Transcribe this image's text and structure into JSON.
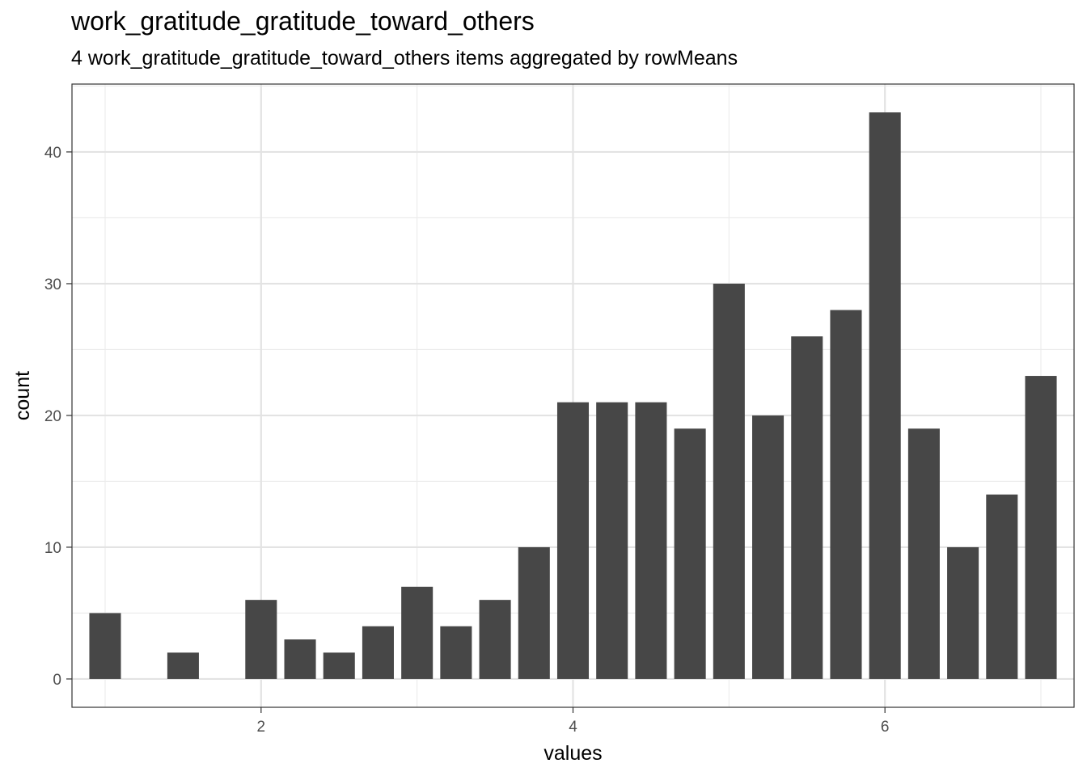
{
  "chart_data": {
    "type": "bar",
    "title": "work_gratitude_gratitude_toward_others",
    "subtitle": "4 work_gratitude_gratitude_toward_others items aggregated by rowMeans",
    "xlabel": "values",
    "ylabel": "count",
    "xlim": [
      0.7875,
      7.2125
    ],
    "ylim": [
      -2.15,
      45.15
    ],
    "x_ticks": [
      2,
      4,
      6
    ],
    "y_ticks": [
      0,
      10,
      20,
      30,
      40
    ],
    "bar_width": 0.225,
    "bar_color": "#474747",
    "grid": true,
    "legend": "none",
    "x": [
      1,
      1.5,
      2,
      2.25,
      2.5,
      2.75,
      3,
      3.25,
      3.5,
      3.75,
      4,
      4.25,
      4.5,
      4.75,
      5,
      5.25,
      5.5,
      5.75,
      6,
      6.25,
      6.5,
      6.75,
      7
    ],
    "values": [
      5,
      2,
      6,
      3,
      2,
      4,
      7,
      4,
      6,
      10,
      21,
      21,
      21,
      19,
      30,
      20,
      26,
      28,
      43,
      19,
      10,
      14,
      23
    ]
  }
}
